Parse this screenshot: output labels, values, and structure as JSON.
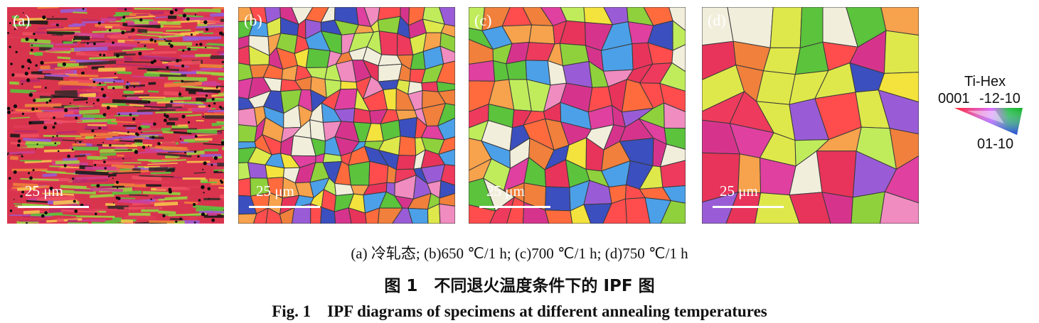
{
  "panels": [
    {
      "label": "(a)",
      "scale": "25 μm",
      "type": "cold-rolled"
    },
    {
      "label": "(b)",
      "scale": "25 μm",
      "type": "fine"
    },
    {
      "label": "(c)",
      "scale": "25 μm",
      "type": "medium"
    },
    {
      "label": "(d)",
      "scale": "25 μm",
      "type": "coarse"
    }
  ],
  "legend": {
    "title": "Ti-Hex",
    "corner_top_left": "0001",
    "corner_top_right": "-12-10",
    "corner_bottom": "01-10"
  },
  "captions": {
    "sub": "(a) 冷轧态;  (b)650 ℃/1 h;  (c)700 ℃/1 h; (d)750 ℃/1 h",
    "cn": "图 1　不同退火温度条件下的 IPF 图",
    "en": "Fig. 1　IPF diagrams of specimens at different annealing temperatures"
  },
  "colors": {
    "palette": [
      "#ee3a5c",
      "#f0803c",
      "#e8345a",
      "#ff6b3d",
      "#e040a0",
      "#d6348c",
      "#f3e33c",
      "#dfe84a",
      "#8fd13c",
      "#5cc33c",
      "#f7a24c",
      "#c0ec5c",
      "#3c4fbf",
      "#9a5cd6",
      "#4ca0e8",
      "#ff4d4d",
      "#f08cc0",
      "#f2eedc"
    ],
    "boundary": "#3a3a3a"
  }
}
